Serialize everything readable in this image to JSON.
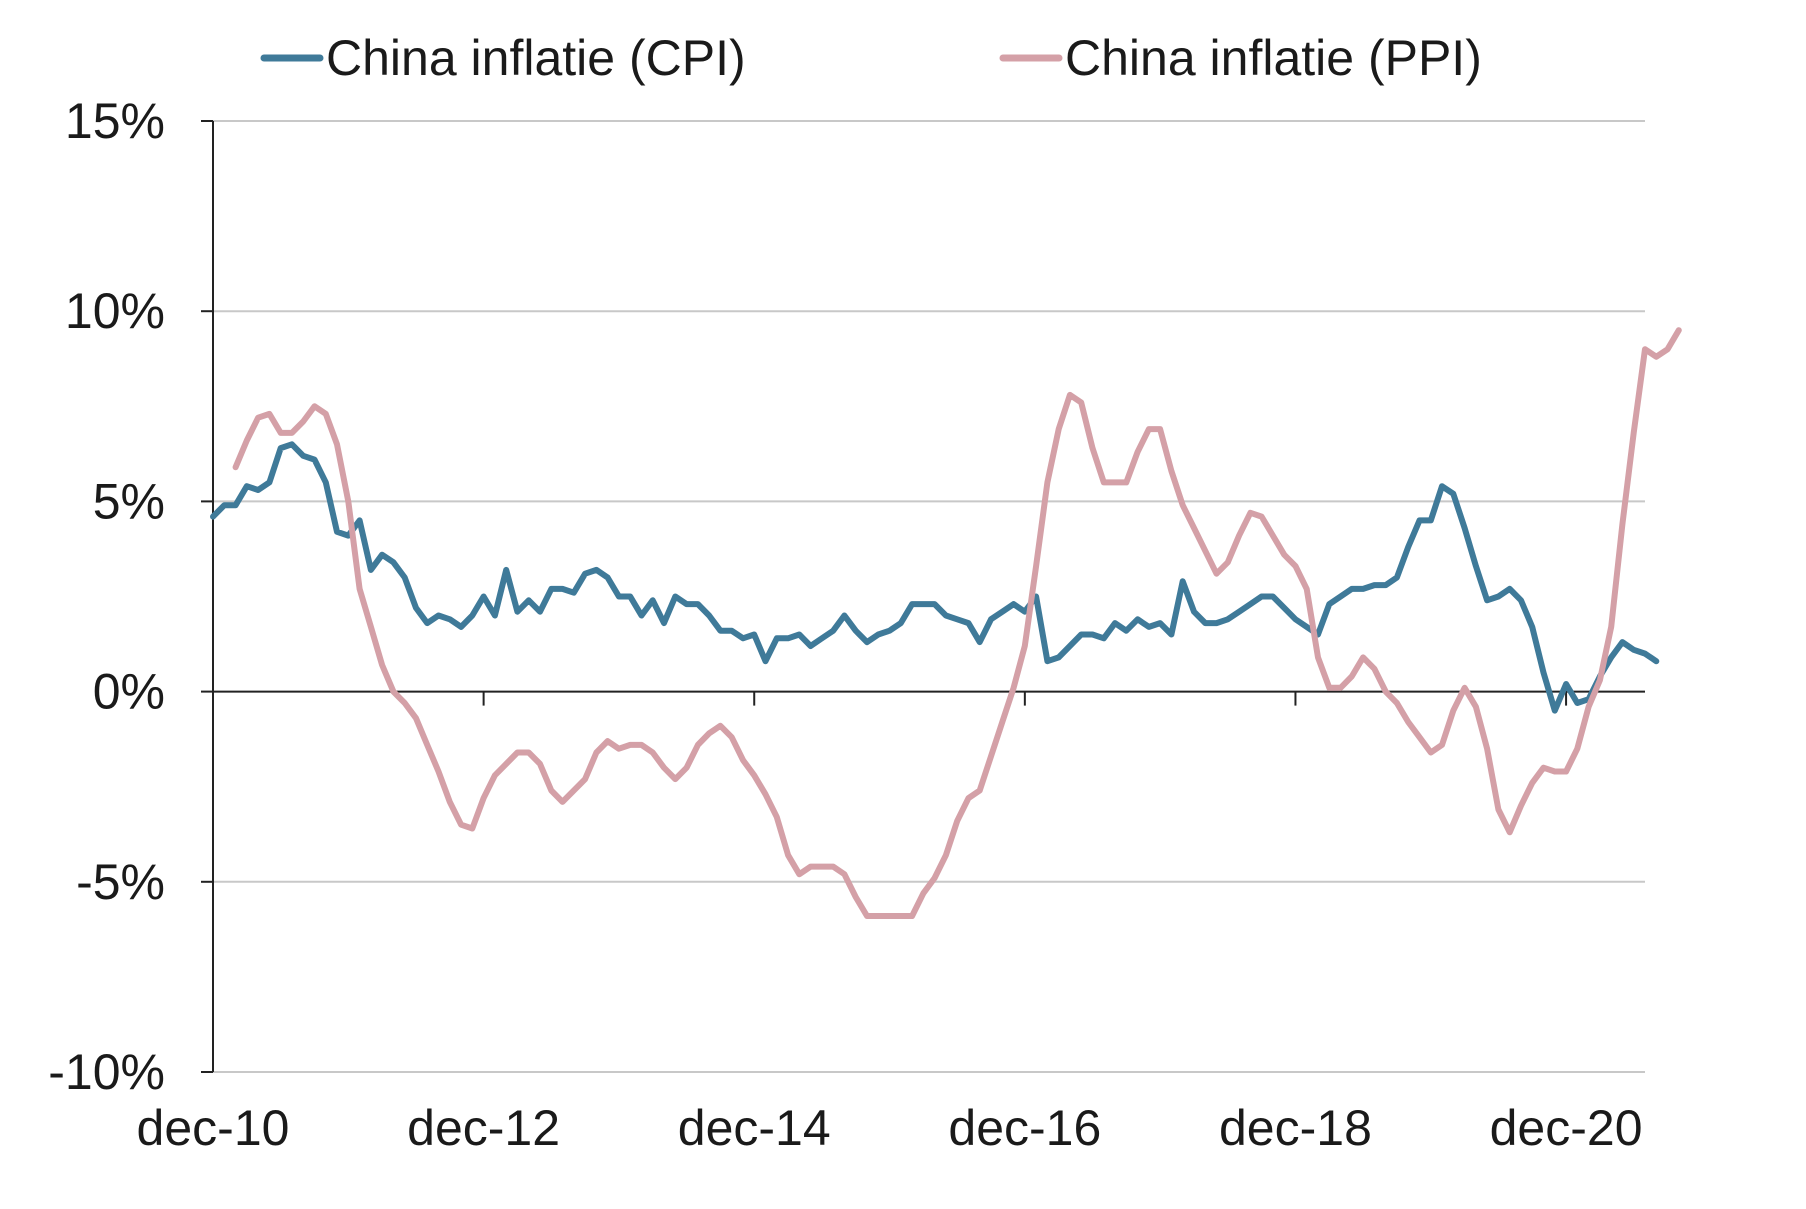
{
  "chart_data": {
    "type": "line",
    "title": "",
    "xlabel": "",
    "ylabel": "",
    "x_tick_labels": [
      "dec-10",
      "dec-12",
      "dec-14",
      "dec-16",
      "dec-18",
      "dec-20"
    ],
    "y_tick_labels": [
      "15%",
      "10%",
      "5%",
      "0%",
      "-5%",
      "-10%"
    ],
    "y_ticks": [
      15,
      10,
      5,
      0,
      -5,
      -10
    ],
    "ylim": [
      -10,
      15
    ],
    "x_range_months": [
      0,
      127
    ],
    "x_start": "dec-10",
    "grid": "horizontal",
    "legend_position": "top",
    "series": [
      {
        "name": "China inflatie (CPI)",
        "color": "#3f7a99",
        "values": [
          4.6,
          4.9,
          4.9,
          5.4,
          5.3,
          5.5,
          6.4,
          6.5,
          6.2,
          6.1,
          5.5,
          4.2,
          4.1,
          4.5,
          3.2,
          3.6,
          3.4,
          3.0,
          2.2,
          1.8,
          2.0,
          1.9,
          1.7,
          2.0,
          2.5,
          2.0,
          3.2,
          2.1,
          2.4,
          2.1,
          2.7,
          2.7,
          2.6,
          3.1,
          3.2,
          3.0,
          2.5,
          2.5,
          2.0,
          2.4,
          1.8,
          2.5,
          2.3,
          2.3,
          2.0,
          1.6,
          1.6,
          1.4,
          1.5,
          0.8,
          1.4,
          1.4,
          1.5,
          1.2,
          1.4,
          1.6,
          2.0,
          1.6,
          1.3,
          1.5,
          1.6,
          1.8,
          2.3,
          2.3,
          2.3,
          2.0,
          1.9,
          1.8,
          1.3,
          1.9,
          2.1,
          2.3,
          2.1,
          2.5,
          0.8,
          0.9,
          1.2,
          1.5,
          1.5,
          1.4,
          1.8,
          1.6,
          1.9,
          1.7,
          1.8,
          1.5,
          2.9,
          2.1,
          1.8,
          1.8,
          1.9,
          2.1,
          2.3,
          2.5,
          2.5,
          2.2,
          1.9,
          1.7,
          1.5,
          2.3,
          2.5,
          2.7,
          2.7,
          2.8,
          2.8,
          3.0,
          3.8,
          4.5,
          4.5,
          5.4,
          5.2,
          4.3,
          3.3,
          2.4,
          2.5,
          2.7,
          2.4,
          1.7,
          0.5,
          -0.5,
          0.2,
          -0.3,
          -0.2,
          0.4,
          0.9,
          1.3,
          1.1,
          1.0,
          0.8
        ],
        "values_start_month": 0
      },
      {
        "name": "China inflatie (PPI)",
        "color": "#d4a0a7",
        "values": [
          5.9,
          6.6,
          7.2,
          7.3,
          6.8,
          6.8,
          7.1,
          7.5,
          7.3,
          6.5,
          5.0,
          2.7,
          1.7,
          0.7,
          0.0,
          -0.3,
          -0.7,
          -1.4,
          -2.1,
          -2.9,
          -3.5,
          -3.6,
          -2.8,
          -2.2,
          -1.9,
          -1.6,
          -1.6,
          -1.9,
          -2.6,
          -2.9,
          -2.6,
          -2.3,
          -1.6,
          -1.3,
          -1.5,
          -1.4,
          -1.4,
          -1.6,
          -2.0,
          -2.3,
          -2.0,
          -1.4,
          -1.1,
          -0.9,
          -1.2,
          -1.8,
          -2.2,
          -2.7,
          -3.3,
          -4.3,
          -4.8,
          -4.6,
          -4.6,
          -4.6,
          -4.8,
          -5.4,
          -5.9,
          -5.9,
          -5.9,
          -5.9,
          -5.9,
          -5.3,
          -4.9,
          -4.3,
          -3.4,
          -2.8,
          -2.6,
          -1.7,
          -0.8,
          0.1,
          1.2,
          3.3,
          5.5,
          6.9,
          7.8,
          7.6,
          6.4,
          5.5,
          5.5,
          5.5,
          6.3,
          6.9,
          6.9,
          5.8,
          4.9,
          4.3,
          3.7,
          3.1,
          3.4,
          4.1,
          4.7,
          4.6,
          4.1,
          3.6,
          3.3,
          2.7,
          0.9,
          0.1,
          0.1,
          0.4,
          0.9,
          0.6,
          0.0,
          -0.3,
          -0.8,
          -1.2,
          -1.6,
          -1.4,
          -0.5,
          0.1,
          -0.4,
          -1.5,
          -3.1,
          -3.7,
          -3.0,
          -2.4,
          -2.0,
          -2.1,
          -2.1,
          -1.5,
          -0.4,
          0.3,
          1.7,
          4.4,
          6.8,
          9.0,
          8.8,
          9.0,
          9.5
        ],
        "values_start_month": 2
      }
    ]
  }
}
